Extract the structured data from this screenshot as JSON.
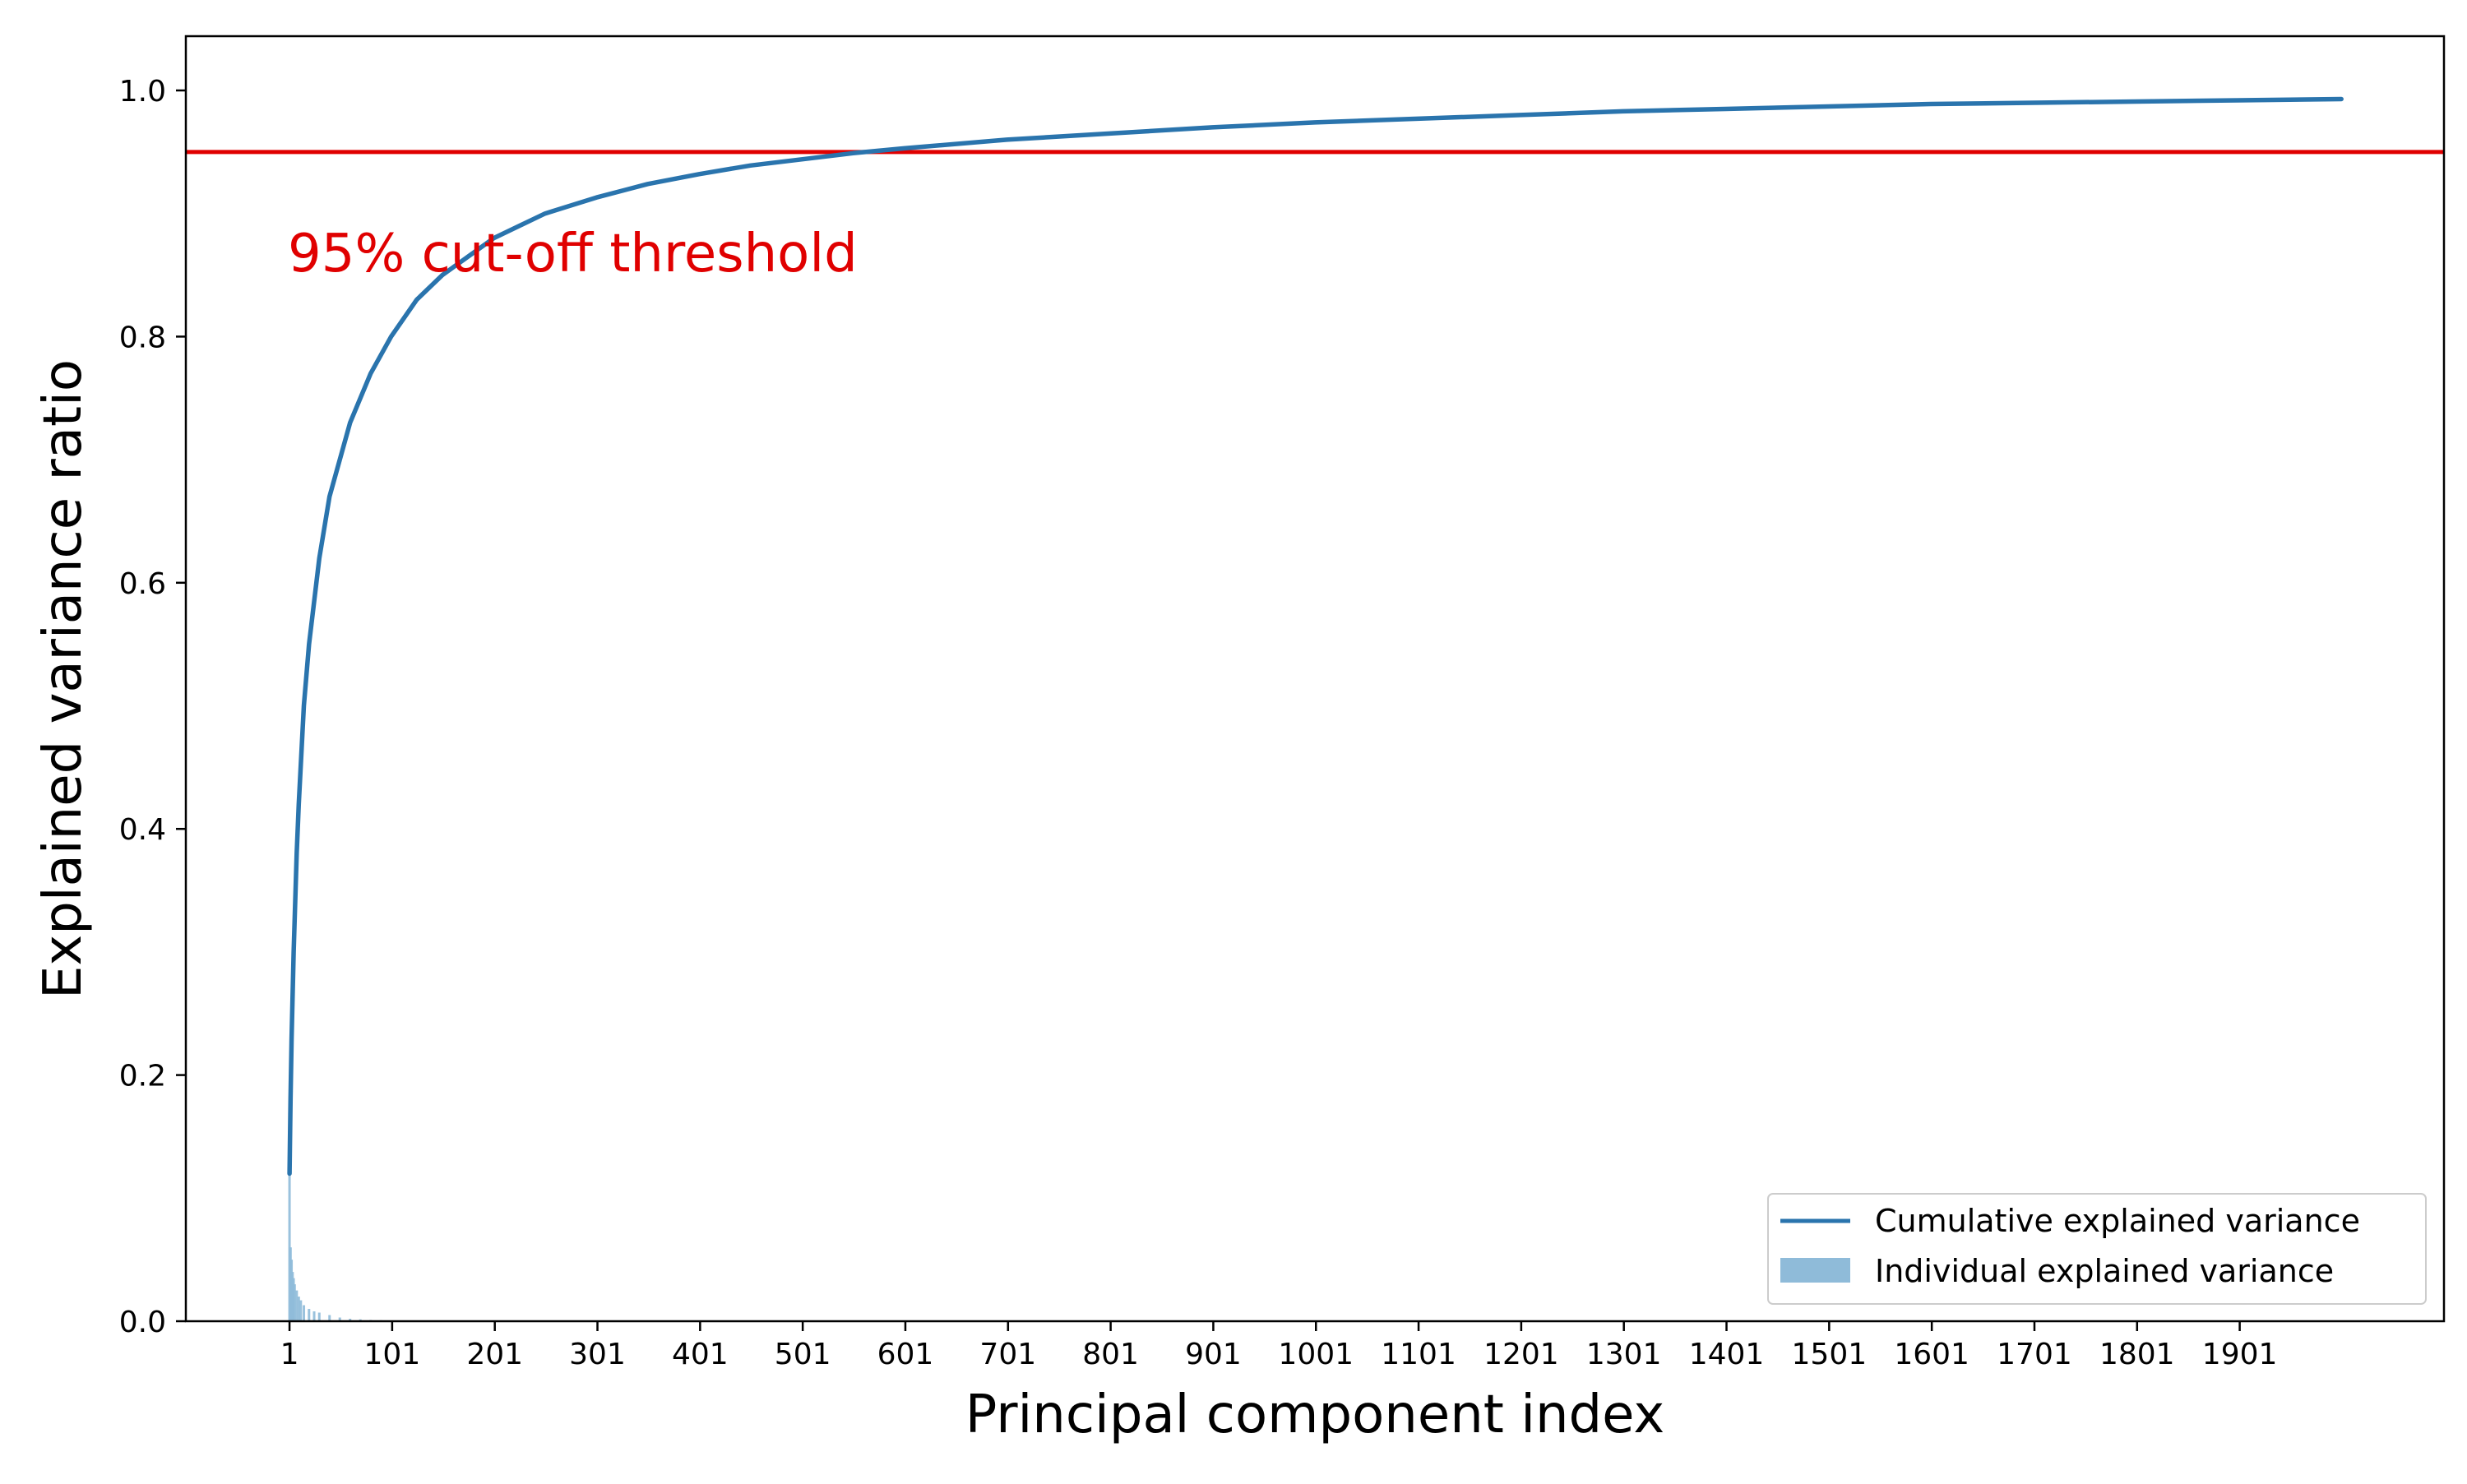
{
  "chart_data": {
    "type": "line",
    "title": "",
    "xlabel": "Principal component index",
    "ylabel": "Explained variance ratio",
    "xlim": [
      -100,
      2100
    ],
    "ylim": [
      0.0,
      1.0
    ],
    "x_ticks": [
      "1",
      "101",
      "201",
      "301",
      "401",
      "501",
      "601",
      "701",
      "801",
      "901",
      "1001",
      "1101",
      "1201",
      "1301",
      "1401",
      "1501",
      "1601",
      "1701",
      "1801",
      "1901"
    ],
    "y_ticks": [
      "0.0",
      "0.2",
      "0.4",
      "0.6",
      "0.8",
      "1.0"
    ],
    "grid": false,
    "legend_position": "lower-right",
    "threshold": {
      "value": 0.95,
      "label": "95% cut-off threshold",
      "color": "#e00000"
    },
    "series": [
      {
        "name": "Cumulative explained variance",
        "type": "line",
        "color": "#2a74ad",
        "x": [
          1,
          2,
          3,
          5,
          8,
          10,
          15,
          20,
          30,
          40,
          50,
          60,
          80,
          100,
          125,
          150,
          200,
          250,
          300,
          350,
          400,
          450,
          500,
          550,
          600,
          700,
          800,
          900,
          1000,
          1100,
          1200,
          1300,
          1400,
          1500,
          1600,
          1700,
          1800,
          1900,
          2000
        ],
        "values": [
          0.12,
          0.18,
          0.23,
          0.3,
          0.38,
          0.42,
          0.5,
          0.55,
          0.62,
          0.67,
          0.7,
          0.73,
          0.77,
          0.8,
          0.83,
          0.85,
          0.88,
          0.9,
          0.913,
          0.924,
          0.932,
          0.939,
          0.944,
          0.949,
          0.953,
          0.96,
          0.965,
          0.97,
          0.974,
          0.977,
          0.98,
          0.983,
          0.985,
          0.987,
          0.989,
          0.99,
          0.991,
          0.992,
          0.993
        ]
      },
      {
        "name": "Individual explained variance",
        "type": "bar",
        "color": "#8fbbd9",
        "x": [
          1,
          2,
          3,
          4,
          5,
          6,
          8,
          10,
          12,
          15,
          20,
          25,
          30,
          40,
          50,
          60,
          70,
          80,
          90,
          100
        ],
        "values": [
          0.12,
          0.06,
          0.05,
          0.04,
          0.035,
          0.03,
          0.025,
          0.02,
          0.017,
          0.013,
          0.01,
          0.008,
          0.007,
          0.005,
          0.003,
          0.002,
          0.0015,
          0.001,
          0.0008,
          0.0006
        ]
      }
    ]
  }
}
